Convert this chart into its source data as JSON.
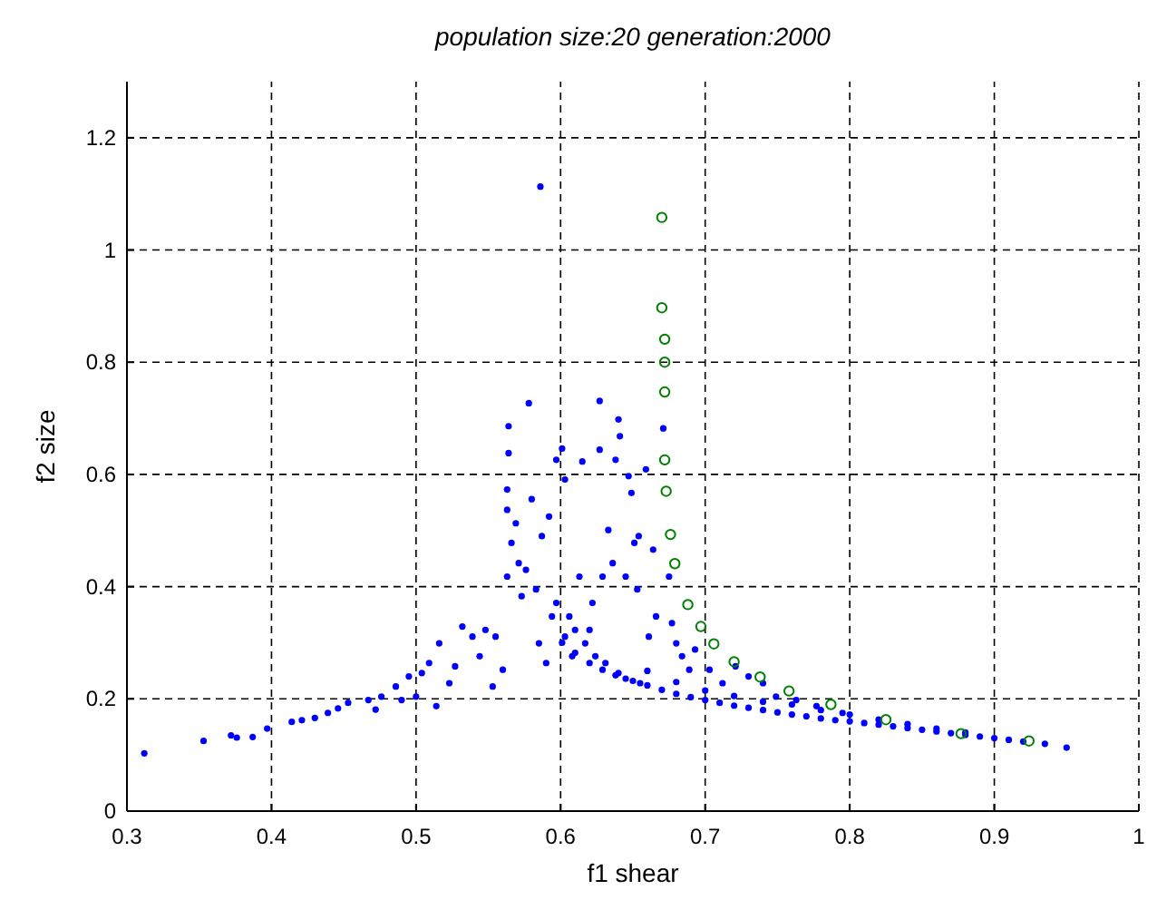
{
  "chart_data": {
    "type": "scatter",
    "title": "population size:20 generation:2000",
    "xlabel": "f1 shear",
    "ylabel": "f2 size",
    "xlim": [
      0.3,
      1
    ],
    "xticks": [
      0.3,
      0.4,
      0.5,
      0.6,
      0.7,
      0.8,
      0.9,
      1
    ],
    "ylim": [
      0,
      1.3
    ],
    "yticks": [
      0,
      0.2,
      0.4,
      0.6,
      0.8,
      1,
      1.2
    ],
    "grid": true,
    "marker": "circle",
    "series": [
      {
        "color": "#0000ff",
        "x": [
          0.312,
          0.353,
          0.372,
          0.376,
          0.387,
          0.397,
          0.414,
          0.421,
          0.43,
          0.439,
          0.446,
          0.453,
          0.467,
          0.472,
          0.476,
          0.486,
          0.49,
          0.495,
          0.5,
          0.504,
          0.509,
          0.514,
          0.516,
          0.523,
          0.527,
          0.532,
          0.539,
          0.544,
          0.548,
          0.553,
          0.555,
          0.56,
          0.563,
          0.564,
          0.564,
          0.563,
          0.563,
          0.566,
          0.569,
          0.571,
          0.573,
          0.576,
          0.578,
          0.58,
          0.583,
          0.585,
          0.586,
          0.587,
          0.59,
          0.592,
          0.594,
          0.597,
          0.597,
          0.601,
          0.603,
          0.603,
          0.606,
          0.608,
          0.61,
          0.613,
          0.615,
          0.617,
          0.62,
          0.622,
          0.624,
          0.627,
          0.627,
          0.629,
          0.631,
          0.633,
          0.636,
          0.638,
          0.64,
          0.641,
          0.645,
          0.647,
          0.649,
          0.651,
          0.653,
          0.654,
          0.659,
          0.661,
          0.664,
          0.666,
          0.671,
          0.675,
          0.677,
          0.68,
          0.684,
          0.689,
          0.693,
          0.703,
          0.712,
          0.721,
          0.73,
          0.74,
          0.749,
          0.763,
          0.777,
          0.795,
          0.601,
          0.61,
          0.62,
          0.629,
          0.638,
          0.64,
          0.645,
          0.65,
          0.655,
          0.66,
          0.67,
          0.68,
          0.69,
          0.7,
          0.71,
          0.72,
          0.73,
          0.74,
          0.75,
          0.76,
          0.77,
          0.78,
          0.79,
          0.8,
          0.81,
          0.82,
          0.83,
          0.84,
          0.85,
          0.86,
          0.87,
          0.88,
          0.89,
          0.9,
          0.91,
          0.92,
          0.935,
          0.95,
          0.66,
          0.68,
          0.7,
          0.72,
          0.74,
          0.76,
          0.78,
          0.8,
          0.82,
          0.84,
          0.86,
          0.88
        ],
        "values": [
          0.103,
          0.125,
          0.135,
          0.131,
          0.132,
          0.147,
          0.159,
          0.162,
          0.166,
          0.175,
          0.183,
          0.193,
          0.198,
          0.181,
          0.204,
          0.222,
          0.198,
          0.24,
          0.204,
          0.246,
          0.264,
          0.187,
          0.299,
          0.228,
          0.258,
          0.329,
          0.311,
          0.276,
          0.323,
          0.222,
          0.311,
          0.252,
          0.418,
          0.686,
          0.638,
          0.573,
          0.537,
          0.478,
          0.513,
          0.442,
          0.383,
          0.43,
          0.727,
          0.556,
          0.395,
          0.299,
          1.113,
          0.49,
          0.264,
          0.525,
          0.347,
          0.626,
          0.371,
          0.646,
          0.591,
          0.311,
          0.347,
          0.276,
          0.323,
          0.418,
          0.623,
          0.299,
          0.323,
          0.371,
          0.276,
          0.731,
          0.644,
          0.418,
          0.264,
          0.501,
          0.442,
          0.626,
          0.698,
          0.668,
          0.418,
          0.597,
          0.567,
          0.478,
          0.395,
          0.49,
          0.609,
          0.311,
          0.466,
          0.347,
          0.682,
          0.418,
          0.335,
          0.299,
          0.276,
          0.252,
          0.288,
          0.252,
          0.228,
          0.258,
          0.24,
          0.228,
          0.204,
          0.198,
          0.187,
          0.175,
          0.3,
          0.282,
          0.264,
          0.252,
          0.242,
          0.246,
          0.236,
          0.232,
          0.228,
          0.224,
          0.216,
          0.209,
          0.203,
          0.198,
          0.193,
          0.188,
          0.184,
          0.18,
          0.176,
          0.172,
          0.169,
          0.165,
          0.162,
          0.16,
          0.157,
          0.154,
          0.151,
          0.148,
          0.145,
          0.142,
          0.139,
          0.136,
          0.133,
          0.13,
          0.127,
          0.124,
          0.12,
          0.113,
          0.25,
          0.23,
          0.215,
          0.205,
          0.195,
          0.19,
          0.18,
          0.172,
          0.163,
          0.155,
          0.147,
          0.14
        ]
      },
      {
        "color": "#008000",
        "x": [
          0.67,
          0.67,
          0.672,
          0.672,
          0.672,
          0.672,
          0.673,
          0.676,
          0.679,
          0.688,
          0.697,
          0.706,
          0.72,
          0.738,
          0.758,
          0.787,
          0.825,
          0.877,
          0.924
        ],
        "values": [
          1.058,
          0.897,
          0.841,
          0.8,
          0.747,
          0.626,
          0.57,
          0.493,
          0.441,
          0.368,
          0.329,
          0.298,
          0.266,
          0.239,
          0.214,
          0.19,
          0.163,
          0.138,
          0.125
        ]
      }
    ]
  }
}
